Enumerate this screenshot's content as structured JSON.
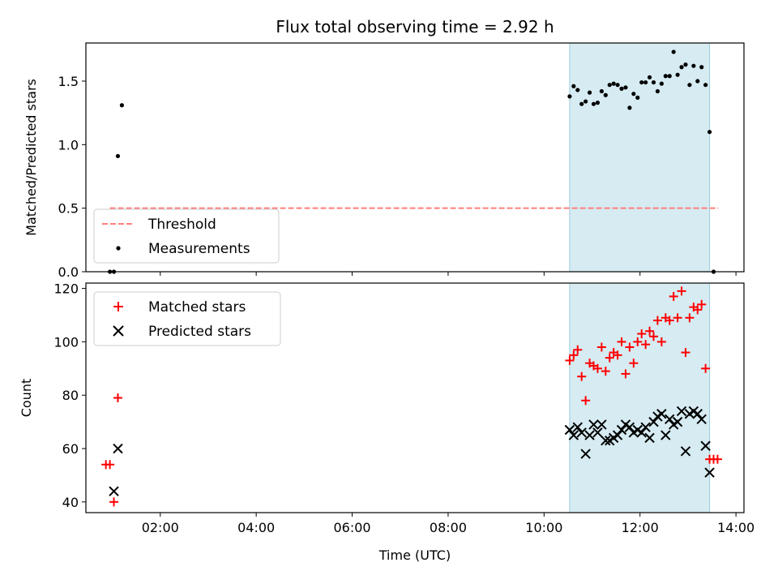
{
  "figure": {
    "title": "Flux total observing time = 2.92 h",
    "xlabel": "Time (UTC)"
  },
  "chart_data": [
    {
      "type": "scatter",
      "ylabel": "Matched/Predicted stars",
      "xlim": [
        "00:27",
        "14:10"
      ],
      "ylim": [
        0,
        1.8
      ],
      "yticks": [
        "0.0",
        "0.5",
        "1.0",
        "1.5"
      ],
      "grid": false,
      "legend_position": "lower-left",
      "shaded_interval": [
        "10:32",
        "13:27"
      ],
      "shade_color": "#add8e6",
      "series": [
        {
          "name": "Threshold",
          "kind": "dashed-line",
          "color": "#ff7f7f",
          "x": [
            "00:57",
            "13:38"
          ],
          "y": [
            0.5,
            0.5
          ]
        },
        {
          "name": "Measurements",
          "kind": "points",
          "color": "#000000",
          "x": [
            "00:57",
            "01:02",
            "01:07",
            "01:12",
            "10:32",
            "10:37",
            "10:42",
            "10:47",
            "10:52",
            "10:57",
            "11:02",
            "11:07",
            "11:12",
            "11:17",
            "11:22",
            "11:27",
            "11:32",
            "11:37",
            "11:42",
            "11:47",
            "11:52",
            "11:57",
            "12:02",
            "12:07",
            "12:12",
            "12:17",
            "12:22",
            "12:27",
            "12:32",
            "12:37",
            "12:42",
            "12:47",
            "12:52",
            "12:57",
            "13:02",
            "13:07",
            "13:12",
            "13:17",
            "13:22",
            "13:27",
            "13:32"
          ],
          "y": [
            0.0,
            0.0,
            0.91,
            1.31,
            1.38,
            1.46,
            1.43,
            1.32,
            1.34,
            1.41,
            1.32,
            1.33,
            1.42,
            1.39,
            1.47,
            1.48,
            1.47,
            1.44,
            1.45,
            1.29,
            1.4,
            1.37,
            1.49,
            1.49,
            1.53,
            1.49,
            1.42,
            1.48,
            1.54,
            1.54,
            1.73,
            1.55,
            1.61,
            1.63,
            1.47,
            1.62,
            1.5,
            1.61,
            1.47,
            1.1,
            0.0
          ]
        }
      ]
    },
    {
      "type": "scatter",
      "ylabel": "Count",
      "xlim": [
        "00:27",
        "14:10"
      ],
      "ylim": [
        36,
        122
      ],
      "yticks": [
        "40",
        "60",
        "80",
        "100",
        "120"
      ],
      "xticks": [
        "02:00",
        "04:00",
        "06:00",
        "08:00",
        "10:00",
        "12:00",
        "14:00"
      ],
      "grid": false,
      "legend_position": "upper-left",
      "shaded_interval": [
        "10:32",
        "13:27"
      ],
      "shade_color": "#add8e6",
      "series": [
        {
          "name": "Matched stars",
          "marker": "plus",
          "color": "#ff0000",
          "x": [
            "00:52",
            "00:57",
            "01:02",
            "01:07",
            "10:32",
            "10:37",
            "10:42",
            "10:47",
            "10:52",
            "10:57",
            "11:02",
            "11:07",
            "11:12",
            "11:17",
            "11:22",
            "11:27",
            "11:32",
            "11:37",
            "11:42",
            "11:47",
            "11:52",
            "11:57",
            "12:02",
            "12:07",
            "12:12",
            "12:17",
            "12:22",
            "12:27",
            "12:32",
            "12:37",
            "12:42",
            "12:47",
            "12:52",
            "12:57",
            "13:02",
            "13:07",
            "13:12",
            "13:17",
            "13:22",
            "13:27",
            "13:32",
            "13:37"
          ],
          "y": [
            54,
            54,
            40,
            79,
            93,
            95,
            97,
            87,
            78,
            92,
            91,
            90,
            98,
            89,
            94,
            96,
            95,
            100,
            88,
            98,
            92,
            100,
            103,
            99,
            104,
            102,
            108,
            100,
            109,
            108,
            117,
            109,
            119,
            96,
            109,
            113,
            112,
            114,
            90,
            56,
            56,
            56
          ]
        },
        {
          "name": "Predicted stars",
          "marker": "x",
          "color": "#000000",
          "x": [
            "01:02",
            "01:07",
            "10:32",
            "10:37",
            "10:42",
            "10:47",
            "10:52",
            "10:57",
            "11:02",
            "11:07",
            "11:12",
            "11:17",
            "11:22",
            "11:27",
            "11:32",
            "11:37",
            "11:42",
            "11:47",
            "11:52",
            "11:57",
            "12:02",
            "12:07",
            "12:12",
            "12:17",
            "12:22",
            "12:27",
            "12:32",
            "12:37",
            "12:42",
            "12:47",
            "12:52",
            "12:57",
            "13:02",
            "13:07",
            "13:12",
            "13:17",
            "13:22",
            "13:27"
          ],
          "y": [
            44,
            60,
            67,
            65,
            68,
            66,
            58,
            65,
            69,
            66,
            69,
            63,
            63,
            64,
            65,
            67,
            69,
            68,
            66,
            67,
            66,
            68,
            64,
            70,
            72,
            73,
            65,
            71,
            69,
            70,
            74,
            59,
            73,
            74,
            73,
            71,
            61,
            51
          ]
        }
      ]
    }
  ]
}
